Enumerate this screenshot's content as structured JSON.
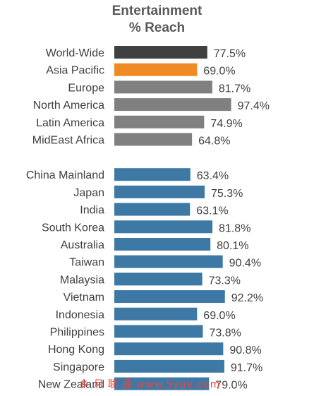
{
  "chart_data": {
    "type": "bar",
    "orientation": "horizontal",
    "title": "Entertainment",
    "subtitle": "% Reach",
    "value_suffix": "%",
    "groups": [
      {
        "categories": [
          "World-Wide",
          "Asia Pacific",
          "Europe",
          "North America",
          "Latin America",
          "MidEast Africa"
        ],
        "values": [
          77.5,
          69.0,
          81.7,
          97.4,
          74.9,
          64.8
        ],
        "colors": [
          "#404040",
          "#f08a24",
          "#808080",
          "#808080",
          "#808080",
          "#808080"
        ]
      },
      {
        "categories": [
          "China Mainland",
          "Japan",
          "India",
          "South Korea",
          "Australia",
          "Taiwan",
          "Malaysia",
          "Vietnam",
          "Indonesia",
          "Philippines",
          "Hong Kong",
          "Singapore",
          "New Zealand"
        ],
        "values": [
          63.4,
          75.3,
          63.1,
          81.8,
          80.1,
          90.4,
          73.3,
          92.2,
          69.0,
          73.8,
          90.8,
          91.7,
          79.0
        ],
        "colors": [
          "#3e78a4",
          "#3e78a4",
          "#3e78a4",
          "#3e78a4",
          "#3e78a4",
          "#3e78a4",
          "#3e78a4",
          "#3e78a4",
          "#3e78a4",
          "#3e78a4",
          "#3e78a4",
          "#3e78a4",
          "#3e78a4"
        ]
      }
    ],
    "label_color": "#404040",
    "grid": false,
    "legend": "none"
  },
  "watermark": "乡 月 联 盟  www.5yue.com"
}
